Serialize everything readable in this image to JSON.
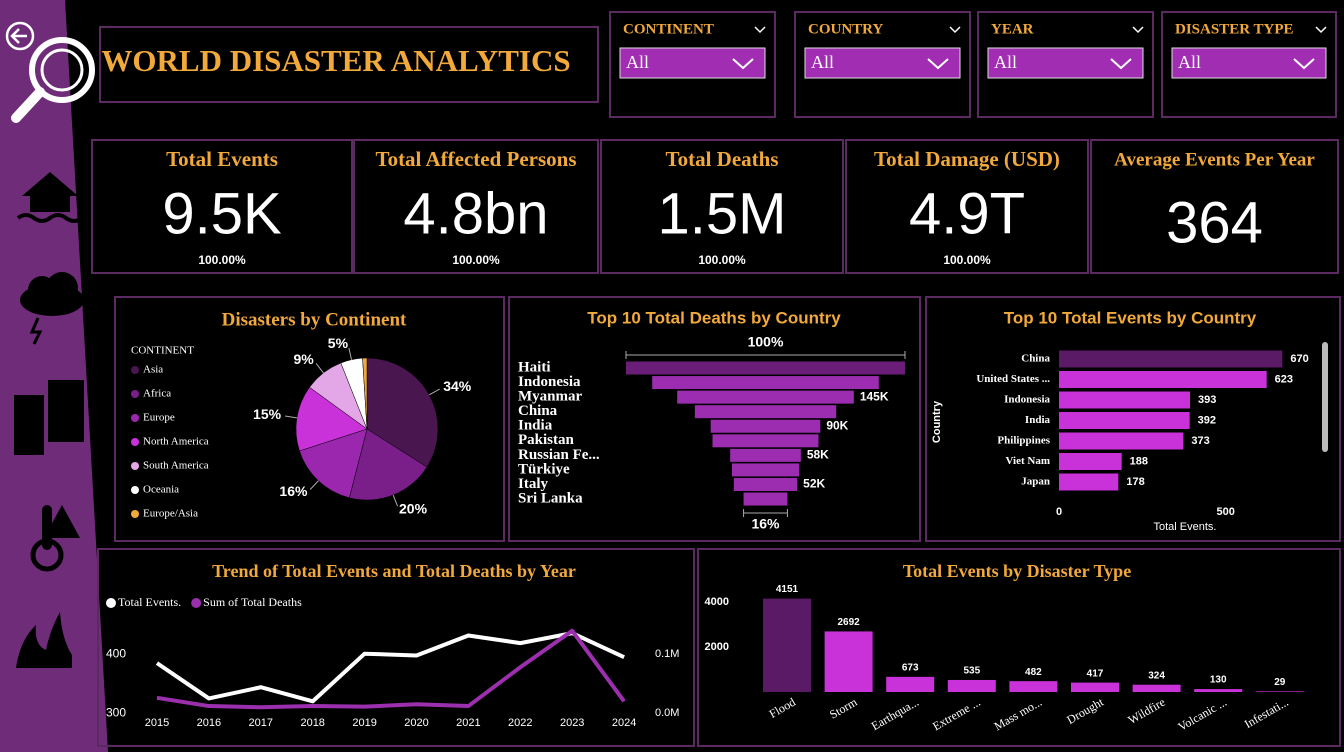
{
  "header": {
    "title": "WORLD DISASTER ANALYTICS"
  },
  "filters": [
    {
      "label": "CONTINENT",
      "value": "All"
    },
    {
      "label": "COUNTRY",
      "value": "All"
    },
    {
      "label": "YEAR",
      "value": "All"
    },
    {
      "label": "DISASTER TYPE",
      "value": "All"
    }
  ],
  "kpis": [
    {
      "title": "Total Events",
      "value": "9.5K",
      "sub": "100.00%"
    },
    {
      "title": "Total Affected Persons",
      "value": "4.8bn",
      "sub": "100.00%"
    },
    {
      "title": "Total Deaths",
      "value": "1.5M",
      "sub": "100.00%"
    },
    {
      "title": "Total Damage (USD)",
      "value": "4.9T",
      "sub": "100.00%"
    },
    {
      "title": "Average Events Per Year",
      "value": "364"
    }
  ],
  "chart_data": [
    {
      "type": "pie",
      "title": "Disasters by Continent",
      "legend_title": "CONTINENT",
      "categories": [
        "Asia",
        "Africa",
        "Europe",
        "North America",
        "South America",
        "Oceania",
        "Europe/Asia"
      ],
      "values": [
        34,
        20,
        16,
        15,
        9,
        5,
        1
      ],
      "value_labels": [
        "34%",
        "20%",
        "16%",
        "15%",
        "9%",
        "5%",
        null
      ],
      "colors": [
        "#4a1650",
        "#7a1e8a",
        "#9b27af",
        "#c932d8",
        "#e3a6e6",
        "#ffffff",
        "#f2a93b"
      ]
    },
    {
      "type": "funnel",
      "title": "Top 10 Total Deaths by Country",
      "categories": [
        "Haiti",
        "Indonesia",
        "Myanmar",
        "China",
        "India",
        "Pakistan",
        "Russian Fe...",
        "Türkiye",
        "Italy",
        "Sri Lanka"
      ],
      "values": [
        229000,
        186000,
        145000,
        116000,
        90000,
        87000,
        58000,
        55000,
        52000,
        36000
      ],
      "value_labels": [
        null,
        null,
        "145K",
        null,
        "90K",
        null,
        "58K",
        null,
        "52K",
        null
      ],
      "annotations": [
        "100%",
        "16%"
      ],
      "xlim": [
        0,
        229000
      ],
      "colors": [
        "#6a1e78",
        "#9c2db0",
        "#9c2db0",
        "#9c2db0",
        "#9c2db0",
        "#9c2db0",
        "#9c2db0",
        "#9c2db0",
        "#9c2db0",
        "#9c2db0"
      ]
    },
    {
      "type": "bar",
      "orientation": "horizontal",
      "title": "Top 10 Total Events by Country",
      "x_label": "Total Events.",
      "y_label": "Country",
      "categories": [
        "China",
        "United States ...",
        "Indonesia",
        "India",
        "Philippines",
        "Viet Nam",
        "Japan"
      ],
      "values": [
        670,
        623,
        393,
        392,
        373,
        188,
        178
      ],
      "colors": [
        "#5b1a66",
        "#c932d8",
        "#c932d8",
        "#c932d8",
        "#c932d8",
        "#c932d8",
        "#c932d8"
      ],
      "xlim": [
        0,
        750
      ],
      "xticks": [
        0,
        500
      ]
    },
    {
      "type": "line",
      "title": "Trend of Total Events and Total Deaths by Year",
      "categories": [
        "2015",
        "2016",
        "2017",
        "2018",
        "2019",
        "2020",
        "2021",
        "2022",
        "2023",
        "2024"
      ],
      "series": [
        {
          "name": "Total Events.",
          "color": "#ffffff",
          "values": [
            385,
            325,
            344,
            320,
            401,
            398,
            432,
            419,
            436,
            395
          ]
        },
        {
          "name": "Sum of Total Deaths",
          "color": "#9b2fae",
          "axis": "y2",
          "values": [
            26000,
            12000,
            10000,
            12000,
            11000,
            15000,
            12000,
            78000,
            140000,
            20000
          ]
        }
      ],
      "ylim": [
        290,
        460
      ],
      "yticks": [
        300,
        400
      ],
      "y2lim": [
        -10000,
        160000
      ],
      "y2ticks": [
        {
          "value": 0,
          "label": "0.0M"
        },
        {
          "value": 100000,
          "label": "0.1M"
        }
      ]
    },
    {
      "type": "bar",
      "title": "Total Events by Disaster Type",
      "categories": [
        "Flood",
        "Storm",
        "Earthqua...",
        "Extreme ...",
        "Mass mo...",
        "Drought",
        "Wildfire",
        "Volcanic ...",
        "Infestati..."
      ],
      "values": [
        4151,
        2692,
        673,
        535,
        482,
        417,
        324,
        130,
        29
      ],
      "colors": [
        "#5b1a66",
        "#c932d8",
        "#c932d8",
        "#c932d8",
        "#c932d8",
        "#c932d8",
        "#c932d8",
        "#c932d8",
        "#c932d8"
      ],
      "ylim": [
        0,
        4500
      ],
      "yticks": [
        2000,
        4000
      ]
    }
  ]
}
